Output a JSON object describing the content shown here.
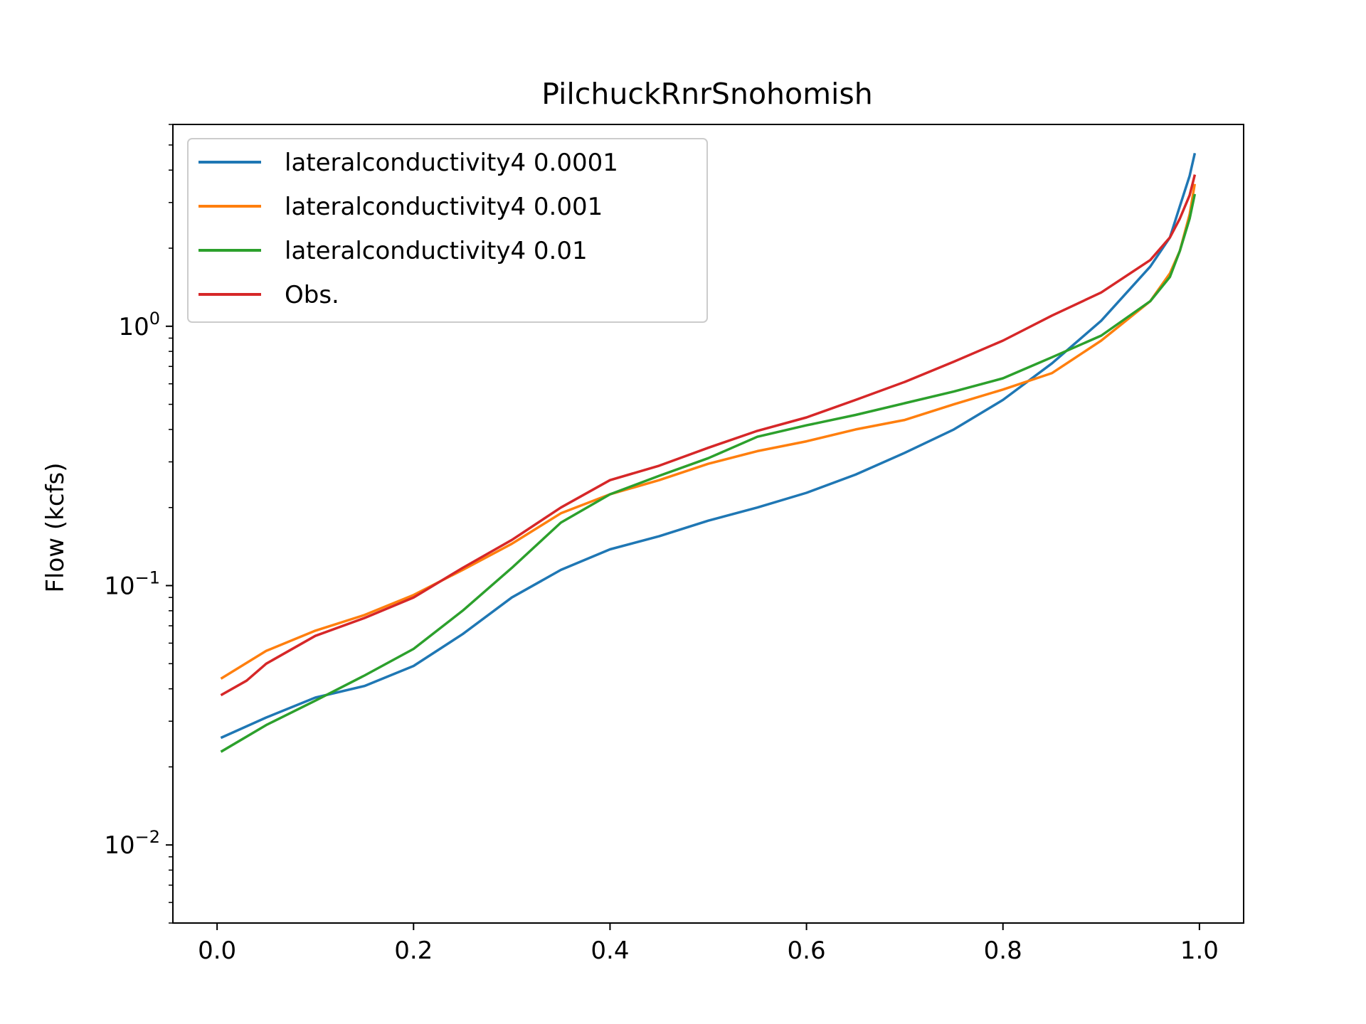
{
  "chart_data": {
    "type": "line",
    "title": "PilchuckRnrSnohomish",
    "xlabel": "",
    "ylabel": "Flow (kcfs)",
    "yscale": "log",
    "xlim": [
      -0.045,
      1.045
    ],
    "ylim": [
      0.005,
      6.0
    ],
    "grid": false,
    "legend_placement": "top-left",
    "x_ticks": [
      {
        "value": 0.0,
        "label": "0.0"
      },
      {
        "value": 0.2,
        "label": "0.2"
      },
      {
        "value": 0.4,
        "label": "0.4"
      },
      {
        "value": 0.6,
        "label": "0.6"
      },
      {
        "value": 0.8,
        "label": "0.8"
      },
      {
        "value": 1.0,
        "label": "1.0"
      }
    ],
    "y_ticks": [
      {
        "value": 0.01,
        "base": "10",
        "exp": "−2"
      },
      {
        "value": 0.1,
        "base": "10",
        "exp": "−1"
      },
      {
        "value": 1.0,
        "base": "10",
        "exp": "0"
      }
    ],
    "series": [
      {
        "name": "lateralconductivity4 0.0001",
        "color": "#1f77b4",
        "x": [
          0.005,
          0.05,
          0.1,
          0.15,
          0.2,
          0.25,
          0.3,
          0.35,
          0.4,
          0.45,
          0.5,
          0.55,
          0.6,
          0.65,
          0.7,
          0.75,
          0.8,
          0.85,
          0.9,
          0.95,
          0.97,
          0.98,
          0.99,
          0.995
        ],
        "y": [
          0.026,
          0.031,
          0.037,
          0.041,
          0.049,
          0.065,
          0.09,
          0.115,
          0.138,
          0.155,
          0.178,
          0.2,
          0.228,
          0.268,
          0.325,
          0.4,
          0.52,
          0.72,
          1.05,
          1.7,
          2.2,
          2.9,
          3.8,
          4.6
        ]
      },
      {
        "name": "lateralconductivity4 0.001",
        "color": "#ff7f0e",
        "x": [
          0.005,
          0.05,
          0.1,
          0.15,
          0.2,
          0.25,
          0.3,
          0.35,
          0.4,
          0.45,
          0.5,
          0.55,
          0.6,
          0.65,
          0.7,
          0.75,
          0.8,
          0.85,
          0.9,
          0.95,
          0.97,
          0.98,
          0.99,
          0.995
        ],
        "y": [
          0.044,
          0.056,
          0.067,
          0.077,
          0.092,
          0.115,
          0.145,
          0.19,
          0.225,
          0.255,
          0.295,
          0.33,
          0.36,
          0.4,
          0.435,
          0.5,
          0.57,
          0.66,
          0.88,
          1.25,
          1.6,
          1.95,
          2.7,
          3.5
        ]
      },
      {
        "name": "lateralconductivity4 0.01",
        "color": "#2ca02c",
        "x": [
          0.005,
          0.05,
          0.1,
          0.15,
          0.2,
          0.25,
          0.3,
          0.35,
          0.4,
          0.45,
          0.5,
          0.55,
          0.6,
          0.65,
          0.7,
          0.75,
          0.8,
          0.85,
          0.9,
          0.95,
          0.97,
          0.98,
          0.99,
          0.995
        ],
        "y": [
          0.023,
          0.029,
          0.036,
          0.045,
          0.057,
          0.08,
          0.117,
          0.175,
          0.225,
          0.265,
          0.31,
          0.375,
          0.415,
          0.455,
          0.505,
          0.56,
          0.63,
          0.76,
          0.92,
          1.25,
          1.55,
          1.95,
          2.6,
          3.2
        ]
      },
      {
        "name": "Obs.",
        "color": "#d62728",
        "x": [
          0.005,
          0.03,
          0.05,
          0.1,
          0.15,
          0.2,
          0.25,
          0.3,
          0.35,
          0.4,
          0.45,
          0.5,
          0.55,
          0.6,
          0.65,
          0.7,
          0.75,
          0.8,
          0.85,
          0.9,
          0.95,
          0.97,
          0.98,
          0.99,
          0.995
        ],
        "y": [
          0.038,
          0.043,
          0.05,
          0.064,
          0.075,
          0.09,
          0.117,
          0.15,
          0.2,
          0.255,
          0.29,
          0.34,
          0.395,
          0.445,
          0.52,
          0.61,
          0.73,
          0.88,
          1.1,
          1.35,
          1.8,
          2.2,
          2.6,
          3.2,
          3.8
        ]
      }
    ]
  }
}
